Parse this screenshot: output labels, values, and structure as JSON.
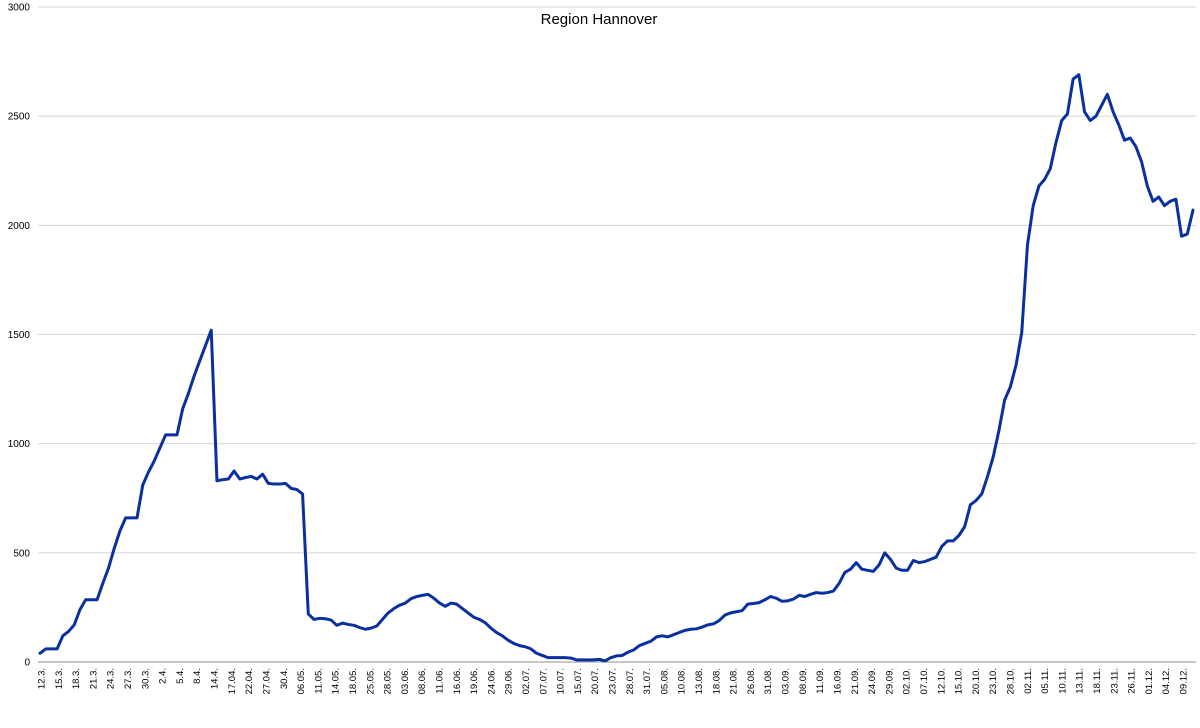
{
  "chart_data": {
    "type": "line",
    "title": "Region Hannover",
    "xlabel": "",
    "ylabel": "",
    "ylim": [
      0,
      3000
    ],
    "yticks": [
      "0",
      "500",
      "1000",
      "1500",
      "2000",
      "2500",
      "3000"
    ],
    "grid": true,
    "legend": "none",
    "xticks": [
      "12.3.",
      "15.3.",
      "18.3.",
      "21.3.",
      "24.3.",
      "27.3.",
      "30.3.",
      "2.4.",
      "5.4.",
      "8.4.",
      "14.4.",
      "17.04.",
      "22.04.",
      "27.04.",
      "30.4.",
      "06.05.",
      "11.05.",
      "14.05.",
      "18.05.",
      "25.05.",
      "28.05.",
      "03.06.",
      "08.06.",
      "11.06.",
      "16.06.",
      "19.06.",
      "24.06.",
      "29.06.",
      "02.07.",
      "07.07.",
      "10.07.",
      "15.07.",
      "20.07.",
      "23.07.",
      "28.07.",
      "31.07.",
      "05.08.",
      "10.08.",
      "13.08.",
      "18.08.",
      "21.08.",
      "26.08.",
      "31.08.",
      "03.09.",
      "08.09.",
      "11.09.",
      "16.09.",
      "21.09.",
      "24.09.",
      "29.09.",
      "02.10.",
      "07.10.",
      "12.10.",
      "15.10.",
      "20.10.",
      "23.10.",
      "28.10.",
      "02.11.",
      "05.11.",
      "10.11.",
      "13.11.",
      "18.11.",
      "23.11.",
      "26.11.",
      "01.12.",
      "04.12.",
      "09.12."
    ],
    "series": [
      {
        "color": "#0a2fa0",
        "values": [
          40,
          60,
          60,
          60,
          120,
          140,
          170,
          240,
          285,
          285,
          285,
          360,
          430,
          520,
          600,
          660,
          660,
          660,
          810,
          870,
          920,
          980,
          1040,
          1040,
          1040,
          1160,
          1230,
          1310,
          1380,
          1450,
          1520,
          830,
          835,
          838,
          875,
          838,
          845,
          850,
          838,
          860,
          818,
          815,
          815,
          818,
          795,
          790,
          770,
          220,
          195,
          200,
          198,
          192,
          168,
          178,
          172,
          168,
          158,
          150,
          155,
          165,
          195,
          225,
          245,
          260,
          270,
          290,
          300,
          305,
          310,
          292,
          270,
          255,
          270,
          265,
          245,
          225,
          205,
          195,
          180,
          155,
          135,
          120,
          100,
          85,
          75,
          70,
          60,
          40,
          30,
          20,
          20,
          20,
          20,
          18,
          10,
          10,
          10,
          10,
          12,
          5,
          20,
          28,
          30,
          45,
          55,
          75,
          85,
          95,
          115,
          120,
          115,
          125,
          135,
          145,
          150,
          152,
          160,
          170,
          175,
          190,
          215,
          225,
          230,
          235,
          265,
          268,
          272,
          285,
          300,
          292,
          278,
          280,
          288,
          305,
          300,
          310,
          318,
          315,
          318,
          325,
          360,
          410,
          425,
          455,
          425,
          420,
          415,
          445,
          500,
          470,
          430,
          420,
          420,
          465,
          455,
          460,
          470,
          480,
          530,
          555,
          555,
          580,
          620,
          720,
          740,
          770,
          850,
          940,
          1060,
          1200,
          1260,
          1360,
          1510,
          1910,
          2090,
          2180,
          2210,
          2260,
          2380,
          2480,
          2510,
          2670,
          2690,
          2520,
          2480,
          2500,
          2550,
          2600,
          2520,
          2460,
          2390,
          2400,
          2360,
          2290,
          2180,
          2110,
          2130,
          2090,
          2110,
          2120,
          1950,
          1960,
          2070
        ]
      }
    ]
  }
}
